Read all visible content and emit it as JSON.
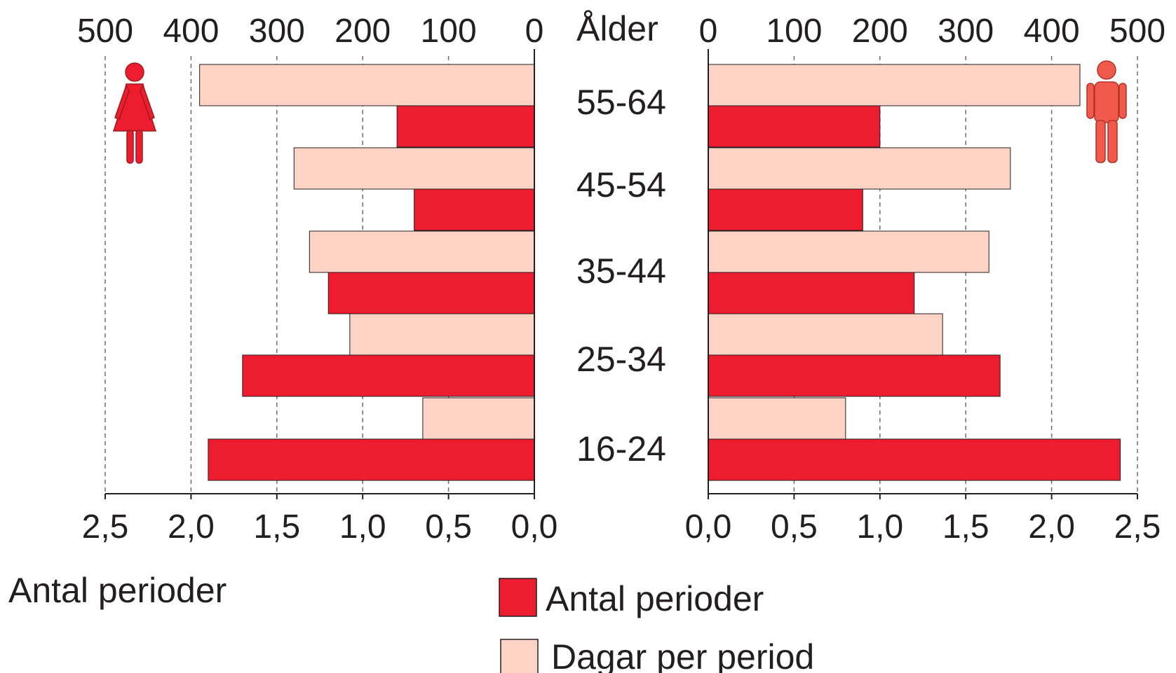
{
  "chart_data": {
    "type": "bar",
    "orientation": "horizontal-diverging",
    "categories": [
      "16-24",
      "25-34",
      "35-44",
      "45-54",
      "55-64"
    ],
    "category_label": "Ålder",
    "groups": [
      {
        "name": "women",
        "icon": "female-icon",
        "side": "left",
        "series": [
          {
            "name": "Antal perioder",
            "axis": "bottom",
            "values": [
              1.9,
              1.7,
              1.2,
              0.7,
              0.8
            ]
          },
          {
            "name": "Dagar per period",
            "axis": "top",
            "values": [
              130,
              215,
              262,
              280,
              390
            ]
          }
        ]
      },
      {
        "name": "men",
        "icon": "male-icon",
        "side": "right",
        "series": [
          {
            "name": "Antal perioder",
            "axis": "bottom",
            "values": [
              2.4,
              1.7,
              1.2,
              0.9,
              1.0
            ]
          },
          {
            "name": "Dagar per period",
            "axis": "top",
            "values": [
              160,
              273,
              327,
              352,
              433
            ]
          }
        ]
      }
    ],
    "top_axis": {
      "range": [
        0,
        500
      ],
      "ticks": [
        "0",
        "100",
        "200",
        "300",
        "400",
        "500"
      ]
    },
    "bottom_axis": {
      "range": [
        0,
        2.5
      ],
      "ticks": [
        "0,0",
        "0,5",
        "1,0",
        "1,5",
        "2,0",
        "2,5"
      ]
    },
    "xlabel": "Antal perioder",
    "grid": true,
    "legend": {
      "position": "bottom-center",
      "entries": [
        {
          "label": "Antal perioder",
          "color": "#ed1c2e"
        },
        {
          "label": "Dagar per period",
          "color": "#fcd3c5"
        }
      ]
    },
    "colors": {
      "periods": "#ed1c2e",
      "days": "#fcd3c5",
      "female_icon": "#ed1c2e",
      "male_icon": "#f15a4a"
    }
  }
}
